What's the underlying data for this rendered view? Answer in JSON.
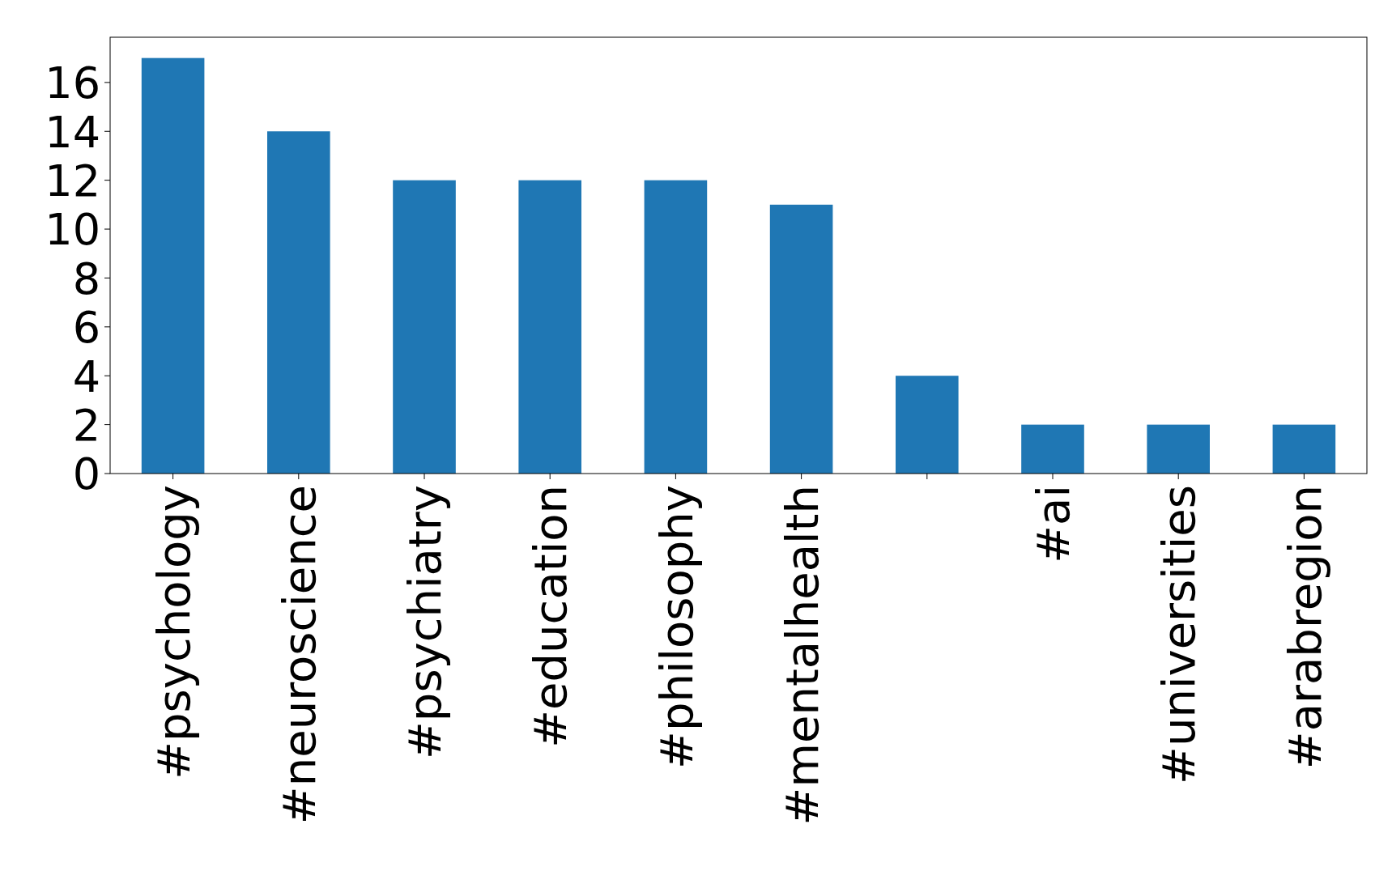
{
  "chart_data": {
    "type": "bar",
    "categories": [
      "#psychology",
      "#neuroscience",
      "#psychiatry",
      "#education",
      "#philosophy",
      "#mentalhealth",
      null,
      "#ai",
      "#universities",
      "#arabregion"
    ],
    "values": [
      17,
      14,
      12,
      12,
      12,
      11,
      4,
      2,
      2,
      2
    ],
    "color": "#1f77b4",
    "ylim": [
      0,
      17.85
    ],
    "yticks": [
      0,
      2,
      4,
      6,
      8,
      10,
      12,
      14,
      16
    ],
    "grid": false
  }
}
